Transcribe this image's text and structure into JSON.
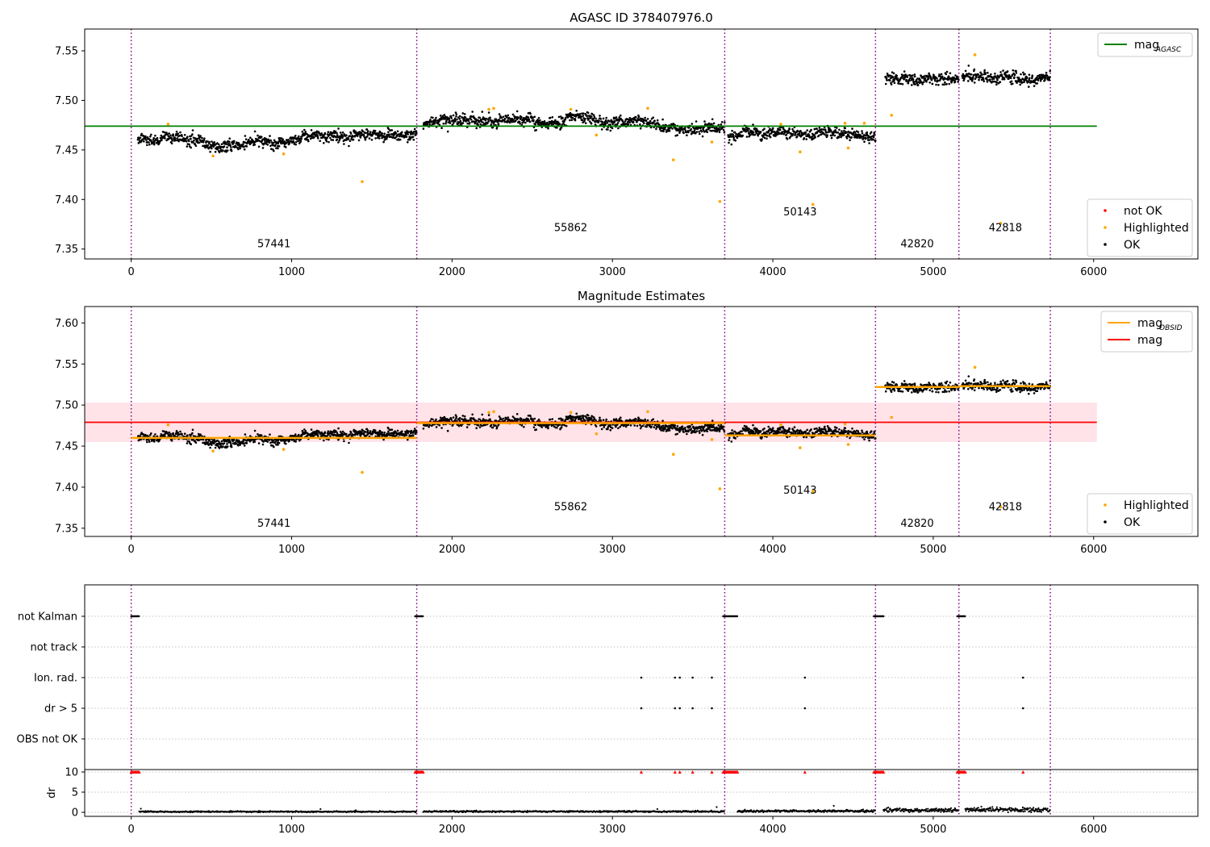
{
  "chart_data": [
    {
      "id": "p1",
      "type": "scatter",
      "title": "AGASC ID 378407976.0",
      "xlim": [
        -290,
        6650
      ],
      "ylim": [
        7.34,
        7.572
      ],
      "xticks": [
        0,
        1000,
        2000,
        3000,
        4000,
        5000,
        6000
      ],
      "yticks": [
        7.35,
        7.4,
        7.45,
        7.5,
        7.55
      ],
      "ytick_labels": [
        "7.35",
        "7.40",
        "7.45",
        "7.50",
        "7.55"
      ],
      "segments": [
        {
          "obsid": "57441",
          "x_start": 40,
          "x_end": 1780,
          "level": 7.461
        },
        {
          "obsid": "55862",
          "x_start": 1820,
          "x_end": 3700,
          "level": 7.478
        },
        {
          "obsid": "50143",
          "x_start": 3720,
          "x_end": 4640,
          "level": 7.463
        },
        {
          "obsid": "42820",
          "x_start": 4700,
          "x_end": 5160,
          "level": 7.522
        },
        {
          "obsid": "42818",
          "x_start": 5180,
          "x_end": 5730,
          "level": 7.523
        }
      ],
      "obsid_labels": [
        {
          "text": "57441",
          "x": 890,
          "y": 7.352
        },
        {
          "text": "55862",
          "x": 2740,
          "y": 7.368
        },
        {
          "text": "50143",
          "x": 4170,
          "y": 7.384
        },
        {
          "text": "42820",
          "x": 4900,
          "y": 7.352
        },
        {
          "text": "42818",
          "x": 5450,
          "y": 7.368
        }
      ],
      "vlines": [
        0,
        1780,
        3700,
        4640,
        5160,
        5730
      ],
      "hline": {
        "y": 7.474,
        "x_start": -290,
        "x_end": 6020,
        "color": "#008000"
      },
      "highlighted": [
        [
          230,
          7.476
        ],
        [
          510,
          7.444
        ],
        [
          950,
          7.446
        ],
        [
          1440,
          7.418
        ],
        [
          2230,
          7.491
        ],
        [
          2260,
          7.492
        ],
        [
          2740,
          7.491
        ],
        [
          2900,
          7.465
        ],
        [
          3220,
          7.492
        ],
        [
          3380,
          7.44
        ],
        [
          3620,
          7.458
        ],
        [
          3670,
          7.398
        ],
        [
          4050,
          7.476
        ],
        [
          4170,
          7.448
        ],
        [
          4250,
          7.395
        ],
        [
          4450,
          7.477
        ],
        [
          4470,
          7.452
        ],
        [
          4570,
          7.477
        ],
        [
          4740,
          7.485
        ],
        [
          5260,
          7.546
        ],
        [
          5420,
          7.376
        ]
      ],
      "legend_top": [
        {
          "label": "mag",
          "subscript": "AGASC",
          "kind": "line",
          "color": "#008000"
        }
      ],
      "legend_bottom": [
        {
          "label": "not OK",
          "kind": "marker",
          "color": "#ff0000"
        },
        {
          "label": "Highlighted",
          "kind": "marker",
          "color": "#ffa500"
        },
        {
          "label": "OK",
          "kind": "marker",
          "color": "#000000"
        }
      ]
    },
    {
      "id": "p2",
      "type": "scatter",
      "title": "Magnitude Estimates",
      "xlim": [
        -290,
        6650
      ],
      "ylim": [
        7.34,
        7.62
      ],
      "xticks": [
        0,
        1000,
        2000,
        3000,
        4000,
        5000,
        6000
      ],
      "yticks": [
        7.35,
        7.4,
        7.45,
        7.5,
        7.55,
        7.6
      ],
      "ytick_labels": [
        "7.35",
        "7.40",
        "7.45",
        "7.50",
        "7.55",
        "7.60"
      ],
      "segments": [
        {
          "obsid": "57441",
          "x_start": 40,
          "x_end": 1780,
          "level": 7.461
        },
        {
          "obsid": "55862",
          "x_start": 1820,
          "x_end": 3700,
          "level": 7.478
        },
        {
          "obsid": "50143",
          "x_start": 3720,
          "x_end": 4640,
          "level": 7.463
        },
        {
          "obsid": "42820",
          "x_start": 4700,
          "x_end": 5160,
          "level": 7.522
        },
        {
          "obsid": "42818",
          "x_start": 5180,
          "x_end": 5730,
          "level": 7.523
        }
      ],
      "obsid_labels": [
        {
          "text": "57441",
          "x": 890,
          "y": 7.352
        },
        {
          "text": "55862",
          "x": 2740,
          "y": 7.372
        },
        {
          "text": "50143",
          "x": 4170,
          "y": 7.392
        },
        {
          "text": "42820",
          "x": 4900,
          "y": 7.352
        },
        {
          "text": "42818",
          "x": 5450,
          "y": 7.372
        }
      ],
      "vlines": [
        0,
        1780,
        3700,
        4640,
        5160,
        5730
      ],
      "band": {
        "y_low": 7.455,
        "y_high": 7.503,
        "x_start": -290,
        "x_end": 6020,
        "color": "#ffc0cb"
      },
      "hline": {
        "y": 7.479,
        "x_start": -290,
        "x_end": 6020,
        "color": "#ff0000"
      },
      "obsid_means": [
        {
          "x_start": 0,
          "x_end": 1780,
          "y": 7.46
        },
        {
          "x_start": 1780,
          "x_end": 3700,
          "y": 7.478
        },
        {
          "x_start": 3700,
          "x_end": 4640,
          "y": 7.463
        },
        {
          "x_start": 4640,
          "x_end": 5160,
          "y": 7.522
        },
        {
          "x_start": 5160,
          "x_end": 5730,
          "y": 7.523
        }
      ],
      "highlighted": [
        [
          230,
          7.476
        ],
        [
          510,
          7.444
        ],
        [
          950,
          7.446
        ],
        [
          1440,
          7.418
        ],
        [
          2230,
          7.491
        ],
        [
          2260,
          7.492
        ],
        [
          2740,
          7.491
        ],
        [
          2900,
          7.465
        ],
        [
          3220,
          7.492
        ],
        [
          3380,
          7.44
        ],
        [
          3620,
          7.458
        ],
        [
          3670,
          7.398
        ],
        [
          4050,
          7.476
        ],
        [
          4170,
          7.448
        ],
        [
          4250,
          7.395
        ],
        [
          4450,
          7.477
        ],
        [
          4470,
          7.452
        ],
        [
          4740,
          7.485
        ],
        [
          5260,
          7.546
        ],
        [
          5420,
          7.376
        ]
      ],
      "legend_top": [
        {
          "label": "mag",
          "subscript": "OBSID",
          "kind": "line",
          "color": "#ffa500"
        },
        {
          "label": "mag",
          "subscript": "",
          "kind": "line",
          "color": "#ff0000"
        }
      ],
      "legend_bottom": [
        {
          "label": "Highlighted",
          "kind": "marker",
          "color": "#ffa500"
        },
        {
          "label": "OK",
          "kind": "marker",
          "color": "#000000"
        }
      ]
    },
    {
      "id": "p3",
      "type": "scatter",
      "title": "",
      "xlim": [
        -290,
        6650
      ],
      "categories": [
        "not Kalman",
        "not track",
        "Ion. rad.",
        "dr > 5",
        "OBS not OK"
      ],
      "vlines": [
        0,
        1780,
        3700,
        4640,
        5160,
        5730
      ],
      "flag_ranges": {
        "not Kalman": [
          [
            0,
            50
          ],
          [
            1770,
            1820
          ],
          [
            3690,
            3780
          ],
          [
            4630,
            4690
          ],
          [
            5150,
            5200
          ]
        ]
      },
      "flag_points": {
        "Ion. rad.": [
          3180,
          3390,
          3420,
          3500,
          3620,
          4200,
          5560
        ],
        "dr > 5": [
          3180,
          3390,
          3420,
          3500,
          3620,
          4200,
          5560
        ]
      }
    },
    {
      "id": "p4",
      "type": "scatter",
      "ylabel": "dr",
      "xlim": [
        -290,
        6650
      ],
      "ylim": [
        -1,
        10.6
      ],
      "yticks": [
        0,
        5,
        10
      ],
      "ytick_labels": [
        "0",
        "5",
        "10"
      ],
      "xticks": [
        0,
        1000,
        2000,
        3000,
        4000,
        5000,
        6000
      ],
      "vlines": [
        0,
        1780,
        3700,
        4640,
        5160,
        5730
      ],
      "capped_value": 10,
      "capped_ranges": [
        [
          0,
          50
        ],
        [
          1770,
          1820
        ],
        [
          3690,
          3780
        ],
        [
          4630,
          4690
        ],
        [
          5150,
          5200
        ]
      ],
      "capped_points": [
        3180,
        3390,
        3420,
        3500,
        3620,
        4200,
        5560
      ],
      "segments": [
        {
          "x_start": 50,
          "x_end": 1780,
          "level": 0.15
        },
        {
          "x_start": 1820,
          "x_end": 3700,
          "level": 0.2
        },
        {
          "x_start": 3780,
          "x_end": 4640,
          "level": 0.3
        },
        {
          "x_start": 4690,
          "x_end": 5160,
          "level": 0.55
        },
        {
          "x_start": 5200,
          "x_end": 5730,
          "level": 0.6
        }
      ],
      "spikes": [
        [
          60,
          0.9
        ],
        [
          1180,
          0.8
        ],
        [
          1400,
          0.5
        ],
        [
          3280,
          0.8
        ],
        [
          3650,
          1.3
        ],
        [
          4380,
          1.6
        ],
        [
          4720,
          1.2
        ],
        [
          5300,
          1.4
        ]
      ]
    }
  ]
}
